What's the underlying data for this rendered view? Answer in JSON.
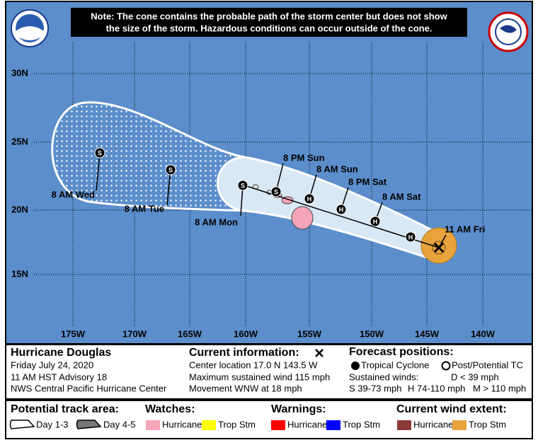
{
  "note": [
    "Note: The cone contains the probable path of the storm center but does not show",
    "the size of the storm. Hazardous conditions can occur outside of the cone."
  ],
  "map": {
    "latitudes": [
      "30N",
      "25N",
      "20N",
      "15N"
    ],
    "longitudes": [
      "175W",
      "170W",
      "165W",
      "160W",
      "155W",
      "150W",
      "145W",
      "140W"
    ],
    "current_position_label": "11 AM Fri",
    "track_points": [
      {
        "symbol": "H"
      },
      {
        "symbol": "H",
        "label": "8 AM Sat"
      },
      {
        "symbol": "H",
        "label": "8 PM Sat"
      },
      {
        "symbol": "H",
        "label": "8 AM Sun"
      },
      {
        "symbol": "S",
        "label": "8 PM Sun"
      },
      {
        "symbol": "S",
        "label": "8 AM Mon"
      },
      {
        "symbol": "S",
        "label": "8 AM Tue"
      },
      {
        "symbol": "S",
        "label": "8 AM Wed"
      }
    ]
  },
  "storm": {
    "name": "Hurricane Douglas",
    "date": "Friday July 24, 2020",
    "advisory": "11 AM HST Advisory 18",
    "center": "NWS Central Pacific Hurricane Center"
  },
  "current_info": {
    "heading": "Current information:",
    "location": "Center location 17.0 N 143.5 W",
    "wind": "Maximum sustained wind 115 mph",
    "movement": "Movement WNW at 18 mph"
  },
  "forecast_positions": {
    "heading": "Forecast positions:",
    "tropical": "Tropical Cyclone",
    "post": "Post/Potential TC",
    "winds_heading": "Sustained winds:",
    "d": "D < 39 mph",
    "s": "S 39-73 mph",
    "h": "H 74-110 mph",
    "m": "M > 110 mph"
  },
  "legend": {
    "track_area": {
      "heading": "Potential track area:",
      "day13": "Day 1-3",
      "day45": "Day 4-5"
    },
    "watches": {
      "heading": "Watches:",
      "hurricane": "Hurricane",
      "trop_stm": "Trop Stm"
    },
    "warnings": {
      "heading": "Warnings:",
      "hurricane": "Hurricane",
      "trop_stm": "Trop Stm"
    },
    "wind_extent": {
      "heading": "Current wind extent:",
      "hurricane": "Hurricane",
      "trop_stm": "Trop Stm"
    }
  }
}
